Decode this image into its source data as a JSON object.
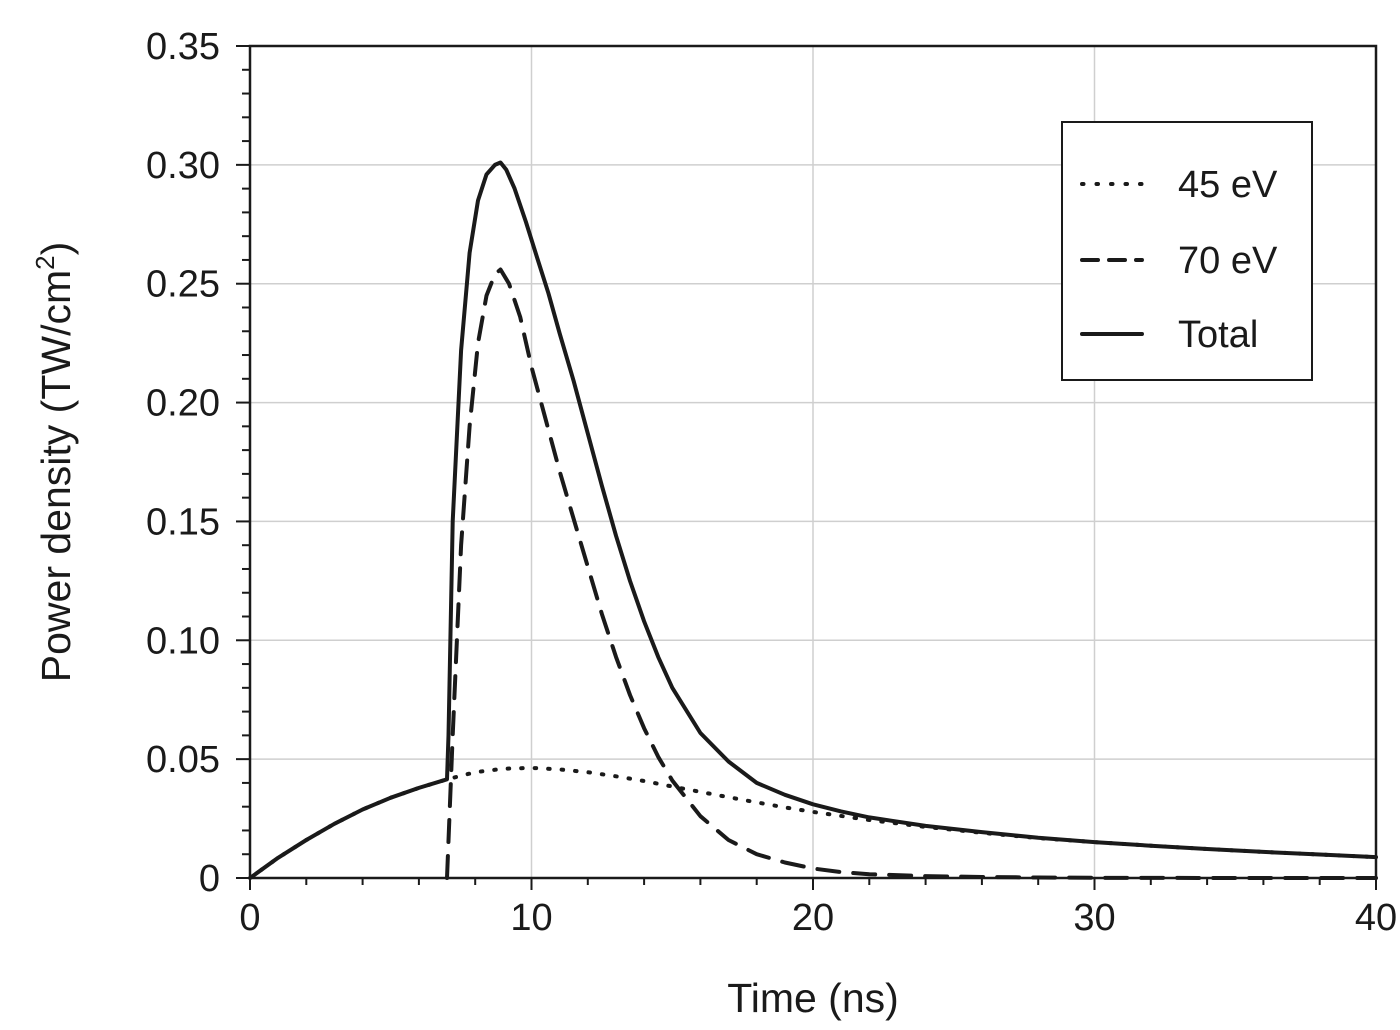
{
  "chart_data": {
    "type": "line",
    "xlabel": "Time (ns)",
    "ylabel": {
      "main": "Power density (TW/cm",
      "superscript": "2",
      "close": ")"
    },
    "xlim": [
      0,
      40
    ],
    "ylim": [
      0,
      0.35
    ],
    "x_ticks": [
      0,
      10,
      20,
      30,
      40
    ],
    "x_tick_labels": [
      "0",
      "10",
      "20",
      "30",
      "40"
    ],
    "y_ticks": [
      0,
      0.05,
      0.1,
      0.15,
      0.2,
      0.25,
      0.3,
      0.35
    ],
    "y_tick_labels": [
      "0",
      "0.05",
      "0.10",
      "0.15",
      "0.20",
      "0.25",
      "0.30",
      "0.35"
    ],
    "grid": true,
    "legend_position": "top-right",
    "series": [
      {
        "name": "45 eV",
        "style": "dotted",
        "color": "#1a1a1a",
        "x": [
          0,
          1,
          2,
          3,
          4,
          5,
          6,
          7,
          8,
          9,
          10,
          11,
          12,
          13,
          14,
          15,
          16,
          17,
          18,
          19,
          20,
          22,
          24,
          26,
          28,
          30,
          32,
          34,
          36,
          38,
          40
        ],
        "y": [
          0,
          0.0085,
          0.016,
          0.0228,
          0.0288,
          0.0338,
          0.0379,
          0.0415,
          0.0445,
          0.046,
          0.0463,
          0.0457,
          0.0445,
          0.0428,
          0.0408,
          0.0385,
          0.0362,
          0.034,
          0.0318,
          0.0297,
          0.0278,
          0.0244,
          0.0215,
          0.019,
          0.0168,
          0.0151,
          0.0136,
          0.0122,
          0.011,
          0.0099,
          0.0088
        ]
      },
      {
        "name": "70 eV",
        "style": "dashed",
        "color": "#1a1a1a",
        "x": [
          7,
          7.2,
          7.5,
          7.8,
          8.1,
          8.4,
          8.7,
          8.9,
          9.2,
          9.6,
          10,
          10.5,
          11,
          11.5,
          12,
          12.5,
          13,
          13.5,
          14,
          14.5,
          15,
          16,
          17,
          18,
          19,
          20,
          21,
          22,
          24,
          26,
          28,
          30,
          35,
          40
        ],
        "y": [
          0,
          0.06,
          0.14,
          0.19,
          0.225,
          0.245,
          0.254,
          0.256,
          0.25,
          0.236,
          0.215,
          0.193,
          0.171,
          0.151,
          0.131,
          0.111,
          0.093,
          0.077,
          0.063,
          0.051,
          0.041,
          0.026,
          0.016,
          0.01,
          0.0065,
          0.004,
          0.0025,
          0.0016,
          0.0008,
          0.0004,
          0.0002,
          0.0001,
          0,
          0
        ]
      },
      {
        "name": "Total",
        "style": "solid",
        "color": "#1a1a1a",
        "x": [
          0,
          1,
          2,
          3,
          4,
          5,
          6,
          7,
          7.05,
          7.2,
          7.5,
          7.8,
          8.1,
          8.4,
          8.7,
          8.9,
          9.1,
          9.4,
          9.8,
          10.2,
          10.6,
          11,
          11.5,
          12,
          12.5,
          13,
          13.5,
          14,
          14.5,
          15,
          16,
          17,
          18,
          19,
          20,
          21,
          22,
          24,
          26,
          28,
          30,
          32,
          34,
          36,
          38,
          40
        ],
        "y": [
          0,
          0.0085,
          0.016,
          0.0228,
          0.0288,
          0.0338,
          0.0379,
          0.0415,
          0.06,
          0.15,
          0.222,
          0.263,
          0.285,
          0.296,
          0.3,
          0.301,
          0.298,
          0.29,
          0.276,
          0.261,
          0.246,
          0.229,
          0.209,
          0.187,
          0.165,
          0.144,
          0.125,
          0.108,
          0.093,
          0.08,
          0.061,
          0.049,
          0.04,
          0.035,
          0.031,
          0.028,
          0.0255,
          0.0219,
          0.0193,
          0.0169,
          0.0151,
          0.0136,
          0.0122,
          0.011,
          0.0099,
          0.0088
        ]
      }
    ]
  }
}
